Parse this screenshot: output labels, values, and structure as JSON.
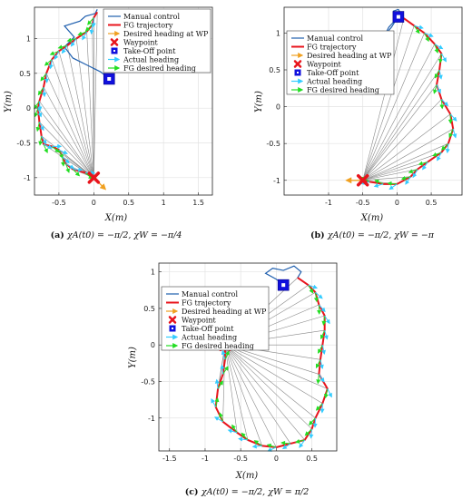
{
  "chart_data": [
    {
      "type": "line",
      "panel": "a",
      "caption_letter": "(a)",
      "caption_math": "χA(t0) = −π/2,   χW = −π/4",
      "xlabel": "X(m)",
      "ylabel": "Y(m)",
      "xlim": [
        -0.85,
        1.7
      ],
      "ylim": [
        -1.25,
        1.45
      ],
      "xticks": [
        "-0.5",
        "0",
        "0.5",
        "1",
        "1.5"
      ],
      "xtick_values": [
        -0.5,
        0,
        0.5,
        1,
        1.5
      ],
      "yticks": [
        "1",
        "0.5",
        "0",
        "-0.5",
        "-1"
      ],
      "ytick_values": [
        1,
        0.5,
        0,
        -0.5,
        -1
      ],
      "grid": true,
      "legend_position": "top-right",
      "legend": [
        "Manual control",
        "FG trajectory",
        "Desired heading at WP",
        "Waypoint",
        "Take-Off point",
        "Actual heading",
        "FG desired heading"
      ],
      "waypoint": [
        0,
        -1
      ],
      "takeoff": [
        0.22,
        0.42
      ],
      "desired_heading_deg": -45,
      "manual_control": [
        [
          0.22,
          0.42
        ],
        [
          0.1,
          0.52
        ],
        [
          -0.1,
          0.62
        ],
        [
          -0.3,
          0.72
        ],
        [
          -0.42,
          0.88
        ],
        [
          -0.28,
          1.02
        ],
        [
          -0.42,
          1.18
        ],
        [
          -0.2,
          1.25
        ],
        [
          -0.12,
          1.32
        ],
        [
          0.02,
          1.36
        ],
        [
          0.05,
          1.42
        ]
      ],
      "fg_trajectory": [
        [
          0.05,
          1.38
        ],
        [
          0.0,
          1.3
        ],
        [
          -0.02,
          1.2
        ],
        [
          -0.1,
          1.1
        ],
        [
          -0.25,
          1.0
        ],
        [
          -0.38,
          0.9
        ],
        [
          -0.5,
          0.82
        ],
        [
          -0.6,
          0.7
        ],
        [
          -0.68,
          0.5
        ],
        [
          -0.72,
          0.3
        ],
        [
          -0.78,
          0.1
        ],
        [
          -0.8,
          0.0
        ],
        [
          -0.78,
          -0.2
        ],
        [
          -0.75,
          -0.4
        ],
        [
          -0.72,
          -0.52
        ],
        [
          -0.6,
          -0.55
        ],
        [
          -0.5,
          -0.6
        ],
        [
          -0.45,
          -0.7
        ],
        [
          -0.4,
          -0.8
        ],
        [
          -0.3,
          -0.88
        ],
        [
          -0.12,
          -0.93
        ],
        [
          0.0,
          -1.0
        ]
      ]
    },
    {
      "type": "line",
      "panel": "b",
      "caption_letter": "(b)",
      "caption_math": "χA(t0) = −π/2,   χW = −π",
      "xlabel": "X(m)",
      "ylabel": "Y(m)",
      "xlim": [
        -1.65,
        0.95
      ],
      "ylim": [
        -1.2,
        1.35
      ],
      "xticks": [
        "-1",
        "-0.5",
        "0",
        "0.5"
      ],
      "xtick_values": [
        -1,
        -0.5,
        0,
        0.5
      ],
      "yticks": [
        "1",
        "0.5",
        "0",
        "-0.5",
        "-1"
      ],
      "ytick_values": [
        1,
        0.5,
        0,
        -0.5,
        -1
      ],
      "grid": true,
      "legend_position": "top-left",
      "legend": [
        "Manual control",
        "FG trajectory",
        "Desired heading at WP",
        "Waypoint",
        "Take-Off point",
        "Actual heading",
        "FG desired heading"
      ],
      "waypoint": [
        -0.5,
        -1
      ],
      "takeoff": [
        0.02,
        1.22
      ],
      "desired_heading_deg": 180,
      "manual_control": [
        [
          0.02,
          1.22
        ],
        [
          -0.05,
          1.15
        ],
        [
          -0.12,
          1.08
        ],
        [
          -0.18,
          0.97
        ],
        [
          -0.08,
          1.08
        ],
        [
          0.0,
          1.2
        ],
        [
          -0.05,
          1.3
        ],
        [
          0.02,
          1.32
        ],
        [
          0.1,
          1.2
        ]
      ],
      "fg_trajectory": [
        [
          0.1,
          1.2
        ],
        [
          0.25,
          1.1
        ],
        [
          0.4,
          1.0
        ],
        [
          0.55,
          0.85
        ],
        [
          0.65,
          0.72
        ],
        [
          0.62,
          0.5
        ],
        [
          0.58,
          0.3
        ],
        [
          0.65,
          0.1
        ],
        [
          0.78,
          -0.1
        ],
        [
          0.82,
          -0.3
        ],
        [
          0.75,
          -0.5
        ],
        [
          0.65,
          -0.62
        ],
        [
          0.45,
          -0.75
        ],
        [
          0.3,
          -0.85
        ],
        [
          0.2,
          -0.95
        ],
        [
          0.0,
          -1.05
        ],
        [
          -0.2,
          -1.05
        ],
        [
          -0.4,
          -1.02
        ],
        [
          -0.5,
          -1.0
        ]
      ]
    },
    {
      "type": "line",
      "panel": "c",
      "caption_letter": "(c)",
      "caption_math": "χA(t0) = −π/2,   χW = π/2",
      "xlabel": "X(m)",
      "ylabel": "Y(m)",
      "xlim": [
        -1.65,
        0.85
      ],
      "ylim": [
        -1.45,
        1.12
      ],
      "xticks": [
        "-1.5",
        "-1",
        "-0.5",
        "0",
        "0.5"
      ],
      "xtick_values": [
        -1.5,
        -1,
        -0.5,
        0,
        0.5
      ],
      "yticks": [
        "1",
        "0.5",
        "0",
        "-0.5",
        "-1"
      ],
      "ytick_values": [
        1,
        0.5,
        0,
        -0.5,
        -1
      ],
      "grid": true,
      "legend_position": "top-left",
      "legend": [
        "Manual control",
        "FG trajectory",
        "Desired heading at WP",
        "Waypoint",
        "Take-Off point",
        "Actual heading",
        "FG desired heading"
      ],
      "waypoint": [
        -0.72,
        0
      ],
      "takeoff": [
        0.1,
        0.82
      ],
      "desired_heading_deg": 90,
      "manual_control": [
        [
          0.1,
          0.82
        ],
        [
          0.0,
          0.9
        ],
        [
          -0.15,
          0.98
        ],
        [
          -0.05,
          1.05
        ],
        [
          0.1,
          1.02
        ],
        [
          0.25,
          1.08
        ],
        [
          0.35,
          1.0
        ],
        [
          0.3,
          0.92
        ]
      ],
      "fg_trajectory": [
        [
          0.3,
          0.92
        ],
        [
          0.45,
          0.82
        ],
        [
          0.55,
          0.72
        ],
        [
          0.6,
          0.55
        ],
        [
          0.68,
          0.4
        ],
        [
          0.68,
          0.2
        ],
        [
          0.65,
          0.0
        ],
        [
          0.62,
          -0.2
        ],
        [
          0.6,
          -0.4
        ],
        [
          0.72,
          -0.6
        ],
        [
          0.65,
          -0.8
        ],
        [
          0.55,
          -1.0
        ],
        [
          0.5,
          -1.15
        ],
        [
          0.4,
          -1.3
        ],
        [
          0.2,
          -1.35
        ],
        [
          0.0,
          -1.4
        ],
        [
          -0.2,
          -1.38
        ],
        [
          -0.4,
          -1.3
        ],
        [
          -0.55,
          -1.2
        ],
        [
          -0.75,
          -1.05
        ],
        [
          -0.85,
          -0.85
        ],
        [
          -0.82,
          -0.6
        ],
        [
          -0.75,
          -0.4
        ],
        [
          -0.72,
          -0.2
        ],
        [
          -0.72,
          0.0
        ]
      ]
    }
  ]
}
